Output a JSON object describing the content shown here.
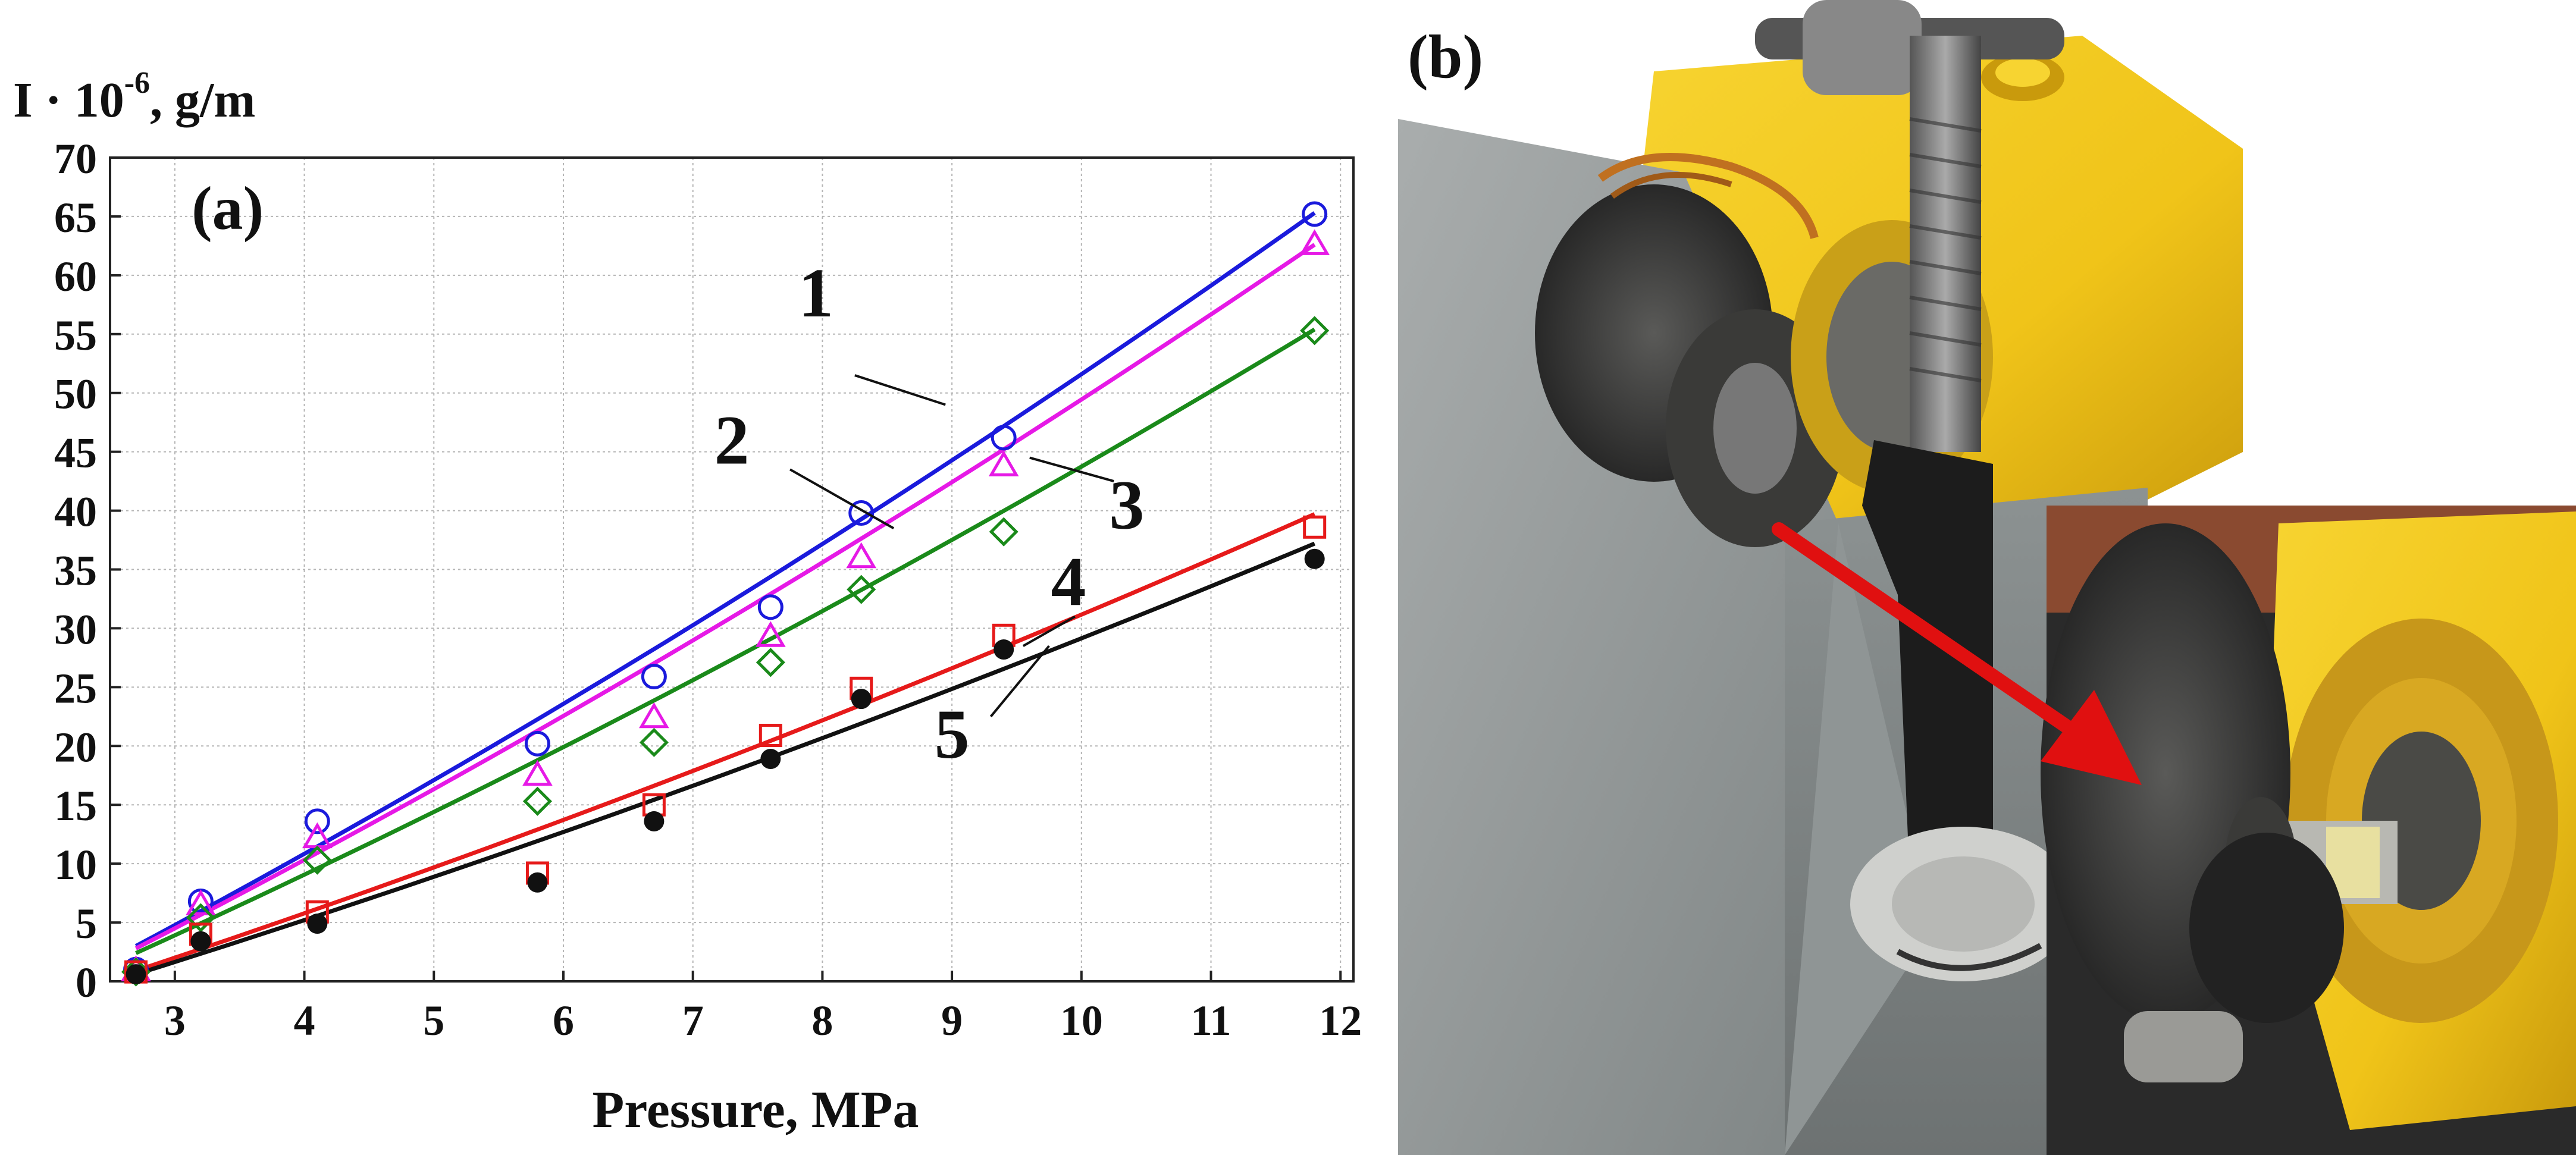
{
  "chart_data": {
    "type": "scatter",
    "panel_label": "(a)",
    "ylabel_main": "I · 10",
    "ylabel_exp": "-6",
    "ylabel_unit": ", g/m",
    "xlabel": "Pressure, MPa",
    "xlim": [
      2.5,
      12.1
    ],
    "ylim": [
      0,
      70
    ],
    "x_ticks": [
      3,
      4,
      5,
      6,
      7,
      8,
      9,
      10,
      11,
      12
    ],
    "y_ticks": [
      0,
      5,
      10,
      15,
      20,
      25,
      30,
      35,
      40,
      45,
      50,
      55,
      60,
      65,
      70
    ],
    "grid": true,
    "x": [
      2.7,
      3.2,
      4.1,
      5.8,
      6.7,
      7.6,
      8.3,
      9.4,
      11.8
    ],
    "series": [
      {
        "name": "1",
        "color": "#1a1adc",
        "marker": "circle",
        "values": [
          1.0,
          6.8,
          13.6,
          20.2,
          25.9,
          31.8,
          39.8,
          46.2,
          65.2
        ],
        "fit_x": [
          2.7,
          11.8
        ],
        "fit_y": [
          3.0,
          65.3
        ]
      },
      {
        "name": "2",
        "color": "#e619e6",
        "marker": "triangle",
        "values": [
          0.9,
          6.5,
          12.2,
          17.5,
          22.4,
          29.3,
          36.0,
          43.8,
          62.6
        ],
        "fit_x": [
          2.7,
          11.8
        ],
        "fit_y": [
          2.8,
          62.6
        ]
      },
      {
        "name": "3",
        "color": "#1a8a1a",
        "marker": "diamond",
        "values": [
          0.8,
          5.4,
          10.3,
          15.3,
          20.3,
          27.1,
          33.3,
          38.2,
          55.3
        ],
        "fit_x": [
          2.7,
          11.8
        ],
        "fit_y": [
          2.4,
          55.4
        ]
      },
      {
        "name": "4",
        "color": "#e61a1a",
        "marker": "square",
        "values": [
          0.8,
          4.0,
          5.9,
          9.2,
          15.0,
          20.9,
          24.9,
          29.4,
          38.6
        ],
        "fit_x": [
          2.7,
          11.8
        ],
        "fit_y": [
          0.9,
          39.7
        ]
      },
      {
        "name": "5",
        "color": "#111111",
        "marker": "filled-circle",
        "values": [
          0.6,
          3.4,
          4.9,
          8.4,
          13.6,
          18.9,
          24.0,
          28.2,
          35.9
        ],
        "fit_x": [
          2.7,
          11.8
        ],
        "fit_y": [
          0.6,
          37.2
        ]
      }
    ],
    "annotations": [
      "1",
      "2",
      "3",
      "4",
      "5"
    ]
  },
  "photo": {
    "panel_label": "(b)",
    "colors": {
      "machine_yellow": "#f0c419",
      "machine_gray": "#9aa0a0",
      "arrow_red": "#e01010",
      "dark_metal": "#2a2a2a"
    },
    "icons": [
      "red-arrow-icon"
    ]
  }
}
